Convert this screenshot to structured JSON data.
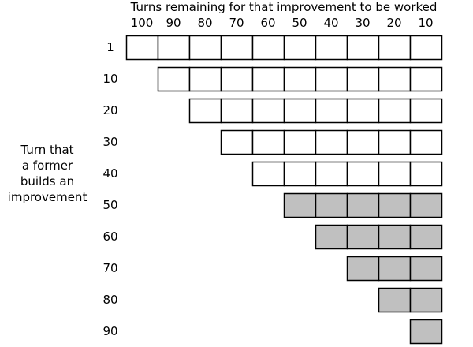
{
  "title": "Turns remaining for that improvement to be worked",
  "side_label_lines": [
    "Turn that",
    "a former",
    "builds an",
    "improvement"
  ],
  "columns": [
    "100",
    "90",
    "80",
    "70",
    "60",
    "50",
    "40",
    "30",
    "20",
    "10"
  ],
  "rows": [
    {
      "label": "1",
      "cells": 10,
      "shaded": false
    },
    {
      "label": "10",
      "cells": 9,
      "shaded": false
    },
    {
      "label": "20",
      "cells": 8,
      "shaded": false
    },
    {
      "label": "30",
      "cells": 7,
      "shaded": false
    },
    {
      "label": "40",
      "cells": 6,
      "shaded": false
    },
    {
      "label": "50",
      "cells": 5,
      "shaded": true
    },
    {
      "label": "60",
      "cells": 4,
      "shaded": true
    },
    {
      "label": "70",
      "cells": 3,
      "shaded": true
    },
    {
      "label": "80",
      "cells": 2,
      "shaded": true
    },
    {
      "label": "90",
      "cells": 1,
      "shaded": true
    }
  ],
  "colors": {
    "shaded_fill": "#c0c0c0",
    "empty_fill": "#ffffff",
    "stroke": "#000000"
  }
}
